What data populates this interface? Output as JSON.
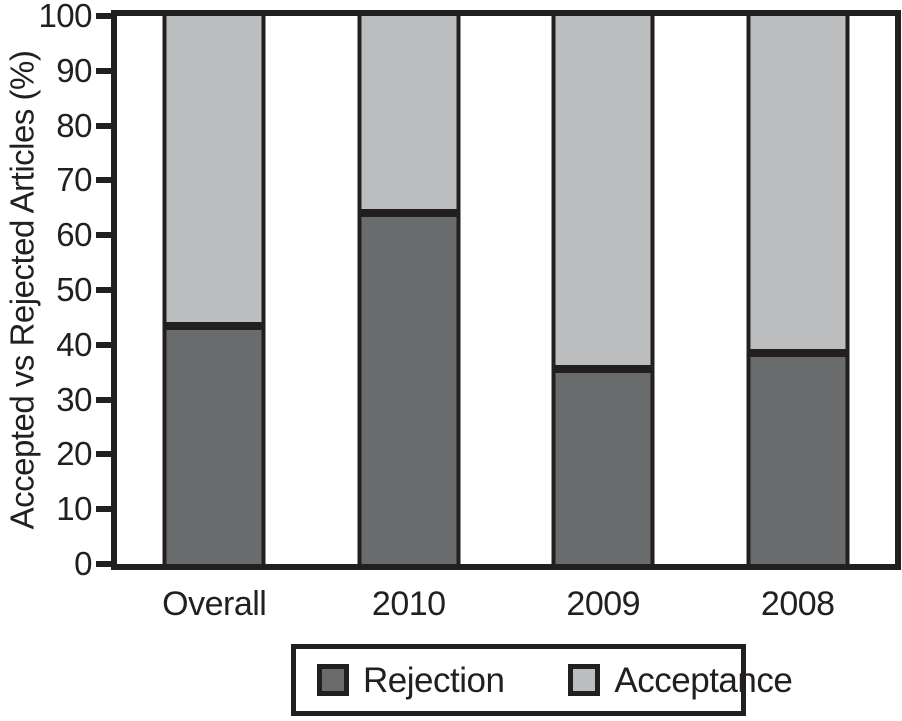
{
  "chart_data": {
    "type": "bar",
    "stacked": true,
    "orientation": "vertical",
    "categories": [
      "Overall",
      "2010",
      "2009",
      "2008"
    ],
    "series": [
      {
        "name": "Rejection",
        "color": "#6a6b6d",
        "values": [
          43.5,
          64,
          35.5,
          38.5
        ]
      },
      {
        "name": "Acceptance",
        "color": "#bbbdbf",
        "values": [
          56.5,
          36,
          64.5,
          61.5
        ]
      }
    ],
    "title": "",
    "xlabel": "",
    "ylabel": "Accepted vs Rejected Articles (%)",
    "ylim": [
      0,
      100
    ],
    "yticks": [
      0,
      10,
      20,
      30,
      40,
      50,
      60,
      70,
      80,
      90,
      100
    ],
    "grid": false,
    "legend_position": "bottom-outside",
    "colors": {
      "ink": "#231f20",
      "background": "#ffffff"
    }
  }
}
